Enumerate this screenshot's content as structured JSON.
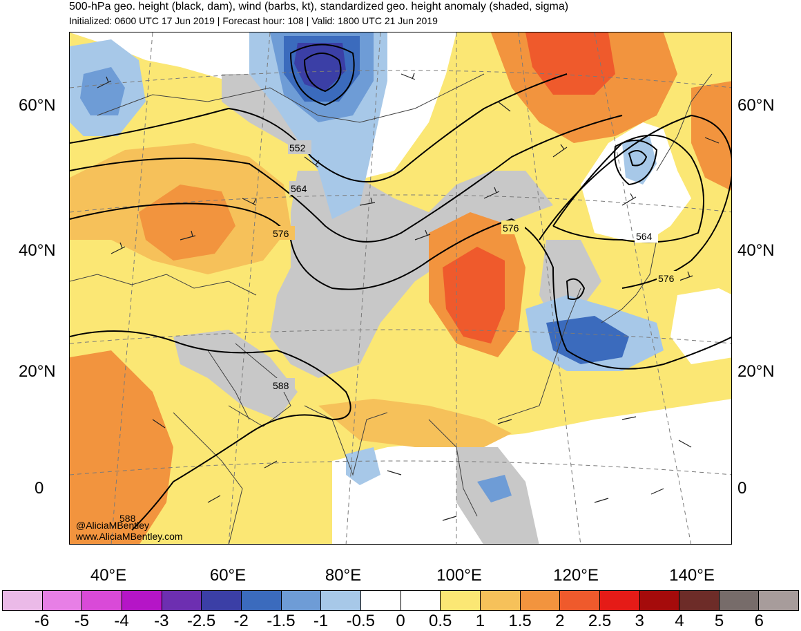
{
  "header": {
    "title": "500-hPa geo. height (black, dam), wind (barbs, kt), standardized geo. height anomaly (shaded, sigma)",
    "subtitle": "Initialized: 0600 UTC 17 Jun 2019 | Forecast hour: 108 | Valid: 1800 UTC 21 Jun 2019"
  },
  "map": {
    "lat_labels": [
      "60°N",
      "40°N",
      "20°N",
      "0"
    ],
    "lon_labels": [
      "40°E",
      "60°E",
      "80°E",
      "100°E",
      "120°E",
      "140°E"
    ],
    "contour_labels": [
      "552",
      "564",
      "576",
      "576",
      "564",
      "576",
      "588",
      "588"
    ],
    "credit": {
      "handle": "@AliciaMBentley",
      "website": "www.AliciaMBentley.com"
    }
  },
  "colorbar": {
    "colors": [
      "#ebbae8",
      "#e77fe6",
      "#d94ad8",
      "#b515c7",
      "#6d2fb1",
      "#3b3fa6",
      "#3b6bbd",
      "#6e9cd6",
      "#a7c8e8",
      "#ffffff",
      "#ffffff",
      "#fbe774",
      "#f6c15a",
      "#f2943e",
      "#ef5a2c",
      "#e51b17",
      "#a50b0b",
      "#6d2c28",
      "#776c6a",
      "#a79c9b"
    ],
    "labels": [
      "-6",
      "-5",
      "-4",
      "-3",
      "-2.5",
      "-2",
      "-1.5",
      "-1",
      "-0.5",
      "0",
      "0.5",
      "1",
      "1.5",
      "2",
      "2.5",
      "3",
      "4",
      "5",
      "6"
    ]
  }
}
